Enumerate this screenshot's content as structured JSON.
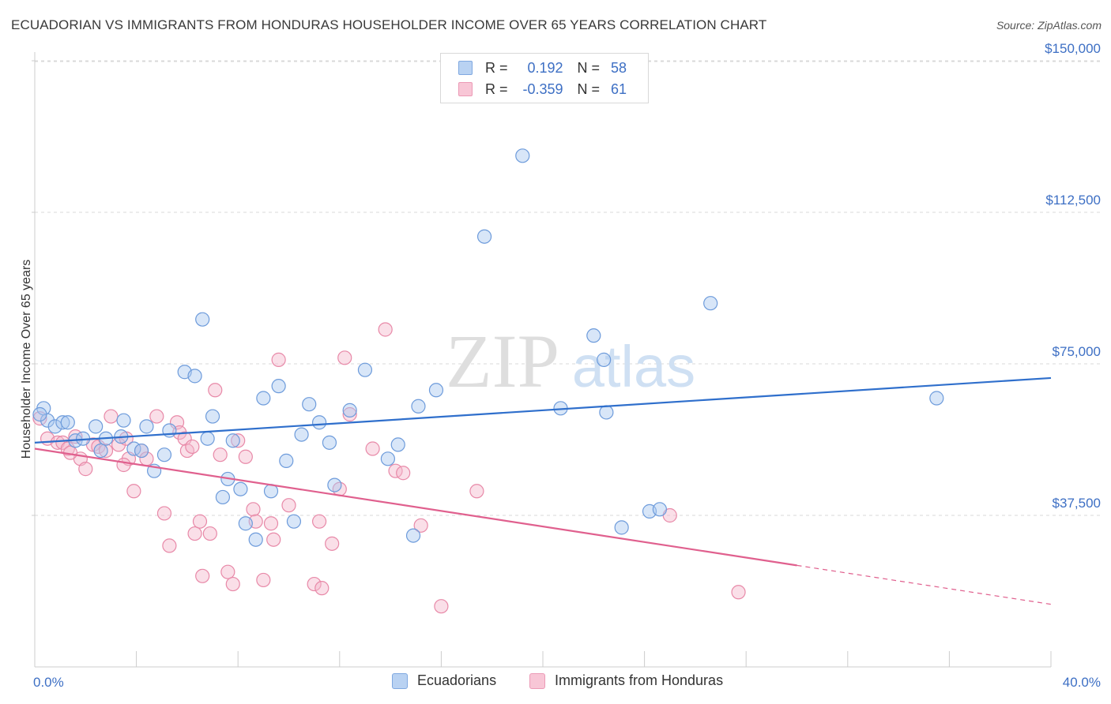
{
  "title": "ECUADORIAN VS IMMIGRANTS FROM HONDURAS HOUSEHOLDER INCOME OVER 65 YEARS CORRELATION CHART",
  "source": "Source: ZipAtlas.com",
  "watermark": {
    "zip": "ZIP",
    "atlas": "atlas"
  },
  "legend": {
    "rows": [
      {
        "r_label": "R =",
        "r_value": "0.192",
        "n_label": "N =",
        "n_value": "58"
      },
      {
        "r_label": "R =",
        "r_value": "-0.359",
        "n_label": "N =",
        "n_value": "61"
      }
    ]
  },
  "colors": {
    "blue_fill": "#a9c8f0",
    "blue_stroke": "#6d9bdb",
    "blue_line": "#2f6fcc",
    "pink_fill": "#f5b8cb",
    "pink_stroke": "#e889a8",
    "pink_line": "#e0608e",
    "grid": "#d9d9d9",
    "tick_label": "#3d6fc4"
  },
  "chart_data": {
    "type": "scatter",
    "title": "ECUADORIAN VS IMMIGRANTS FROM HONDURAS HOUSEHOLDER INCOME OVER 65 YEARS CORRELATION CHART",
    "xlabel": "",
    "ylabel": "Householder Income Over 65 years",
    "xlim": [
      0,
      40
    ],
    "ylim": [
      0,
      157000
    ],
    "x_tick_labels": [
      "0.0%",
      "40.0%"
    ],
    "y_ticks": [
      {
        "value": 37500,
        "label": "$37,500"
      },
      {
        "value": 75000,
        "label": "$75,000"
      },
      {
        "value": 112500,
        "label": "$112,500"
      },
      {
        "value": 150000,
        "label": "$150,000"
      }
    ],
    "grid": true,
    "legend_position": "bottom",
    "series": [
      {
        "name": "Ecuadorians",
        "color": "#6d9bdb",
        "r": 0.192,
        "n": 58,
        "trend": {
          "x0": 0,
          "y0": 55500,
          "x1": 40,
          "y1": 71500,
          "dashed_from": null
        },
        "points": [
          [
            0.35,
            64000
          ],
          [
            0.5,
            61000
          ],
          [
            0.8,
            59500
          ],
          [
            1.1,
            60500
          ],
          [
            1.6,
            56000
          ],
          [
            1.9,
            56500
          ],
          [
            2.4,
            59500
          ],
          [
            2.8,
            56500
          ],
          [
            3.4,
            57000
          ],
          [
            3.5,
            61000
          ],
          [
            3.9,
            54000
          ],
          [
            4.2,
            53500
          ],
          [
            4.7,
            48500
          ],
          [
            5.3,
            58500
          ],
          [
            5.9,
            73000
          ],
          [
            6.3,
            72000
          ],
          [
            6.6,
            86000
          ],
          [
            6.8,
            56500
          ],
          [
            7.0,
            62000
          ],
          [
            7.4,
            42000
          ],
          [
            7.6,
            46500
          ],
          [
            7.8,
            56000
          ],
          [
            8.1,
            44000
          ],
          [
            8.3,
            35500
          ],
          [
            8.7,
            31500
          ],
          [
            9.0,
            66500
          ],
          [
            9.3,
            43500
          ],
          [
            9.6,
            69500
          ],
          [
            9.9,
            51000
          ],
          [
            10.2,
            36000
          ],
          [
            10.5,
            57500
          ],
          [
            10.8,
            65000
          ],
          [
            11.2,
            60500
          ],
          [
            11.6,
            55500
          ],
          [
            11.8,
            45000
          ],
          [
            12.4,
            63500
          ],
          [
            13.0,
            73500
          ],
          [
            13.9,
            51500
          ],
          [
            14.3,
            55000
          ],
          [
            14.9,
            32500
          ],
          [
            15.1,
            64500
          ],
          [
            15.8,
            68500
          ],
          [
            17.7,
            106500
          ],
          [
            19.2,
            126500
          ],
          [
            20.7,
            64000
          ],
          [
            22.0,
            82000
          ],
          [
            22.4,
            76000
          ],
          [
            22.5,
            63000
          ],
          [
            23.1,
            34500
          ],
          [
            24.2,
            38500
          ],
          [
            24.6,
            39000
          ],
          [
            26.6,
            90000
          ],
          [
            35.5,
            66500
          ],
          [
            5.1,
            52500
          ],
          [
            2.6,
            53500
          ],
          [
            1.3,
            60500
          ],
          [
            4.4,
            59500
          ],
          [
            0.2,
            62500
          ]
        ]
      },
      {
        "name": "Immigrants from Honduras",
        "color": "#e889a8",
        "r": -0.359,
        "n": 61,
        "trend": {
          "x0": 0,
          "y0": 54000,
          "x1": 40,
          "y1": 15500,
          "dashed_from": 30
        },
        "points": [
          [
            0.2,
            61500
          ],
          [
            0.5,
            56500
          ],
          [
            0.9,
            55500
          ],
          [
            1.1,
            55500
          ],
          [
            1.3,
            54000
          ],
          [
            1.6,
            57000
          ],
          [
            1.8,
            51500
          ],
          [
            2.0,
            49000
          ],
          [
            2.3,
            55000
          ],
          [
            2.5,
            54500
          ],
          [
            2.8,
            53500
          ],
          [
            3.0,
            62000
          ],
          [
            3.3,
            55000
          ],
          [
            3.6,
            56500
          ],
          [
            3.7,
            51500
          ],
          [
            3.9,
            43500
          ],
          [
            4.2,
            53500
          ],
          [
            4.4,
            51500
          ],
          [
            4.8,
            62000
          ],
          [
            5.1,
            38000
          ],
          [
            5.3,
            30000
          ],
          [
            5.6,
            60500
          ],
          [
            5.7,
            58000
          ],
          [
            5.9,
            56500
          ],
          [
            6.0,
            53500
          ],
          [
            6.2,
            54500
          ],
          [
            6.3,
            33000
          ],
          [
            6.5,
            36000
          ],
          [
            6.6,
            22500
          ],
          [
            6.9,
            33000
          ],
          [
            7.1,
            68500
          ],
          [
            7.3,
            52500
          ],
          [
            7.6,
            23500
          ],
          [
            7.8,
            20500
          ],
          [
            8.0,
            56000
          ],
          [
            8.3,
            52000
          ],
          [
            8.6,
            39000
          ],
          [
            8.7,
            36000
          ],
          [
            9.0,
            21500
          ],
          [
            9.3,
            35500
          ],
          [
            9.4,
            31500
          ],
          [
            9.6,
            76000
          ],
          [
            10.0,
            40000
          ],
          [
            11.0,
            20500
          ],
          [
            11.2,
            36000
          ],
          [
            11.3,
            19500
          ],
          [
            11.7,
            30500
          ],
          [
            12.0,
            44000
          ],
          [
            12.2,
            76500
          ],
          [
            12.4,
            62500
          ],
          [
            13.3,
            54000
          ],
          [
            13.8,
            83500
          ],
          [
            14.2,
            48500
          ],
          [
            14.5,
            48000
          ],
          [
            15.2,
            35000
          ],
          [
            16.0,
            15000
          ],
          [
            17.4,
            43500
          ],
          [
            25.0,
            37500
          ],
          [
            27.7,
            18500
          ],
          [
            1.4,
            53000
          ],
          [
            3.5,
            50000
          ]
        ]
      }
    ]
  },
  "bottom_legend": [
    "Ecuadorians",
    "Immigrants from Honduras"
  ]
}
